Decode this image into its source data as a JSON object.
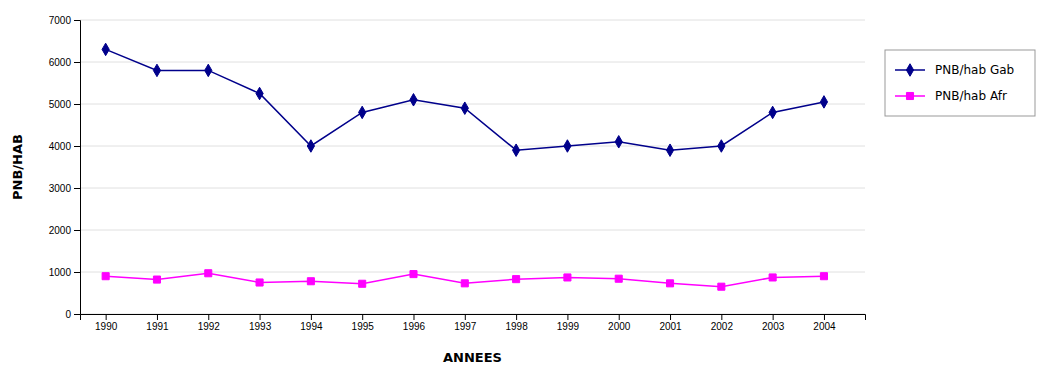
{
  "chart_data": {
    "type": "line",
    "xlabel": "ANNEES",
    "ylabel": "PNB/HAB",
    "x": [
      1990,
      1991,
      1992,
      1993,
      1994,
      1995,
      1996,
      1997,
      1998,
      1999,
      2000,
      2001,
      2002,
      2003,
      2004
    ],
    "xlim": [
      1989.5,
      2004.8
    ],
    "xticks": [
      1990,
      1991,
      1992,
      1993,
      1994,
      1995,
      1996,
      1997,
      1998,
      1999,
      2000,
      2001,
      2002,
      2003,
      2004
    ],
    "ylim": [
      0,
      7000
    ],
    "yticks": [
      0,
      1000,
      2000,
      3000,
      4000,
      5000,
      6000,
      7000
    ],
    "grid": "y",
    "legend": "right",
    "series": [
      {
        "name": "PNB/hab Gab",
        "color": "#00008B",
        "marker": "diamond",
        "values": [
          6300,
          5800,
          5800,
          5250,
          4000,
          4800,
          5100,
          4900,
          3900,
          4000,
          4100,
          3900,
          4000,
          4800,
          5050
        ]
      },
      {
        "name": "PNB/hab Afr",
        "color": "#FF00FF",
        "marker": "square",
        "values": [
          900,
          820,
          970,
          750,
          780,
          720,
          950,
          730,
          830,
          870,
          840,
          730,
          650,
          870,
          900
        ]
      }
    ]
  }
}
